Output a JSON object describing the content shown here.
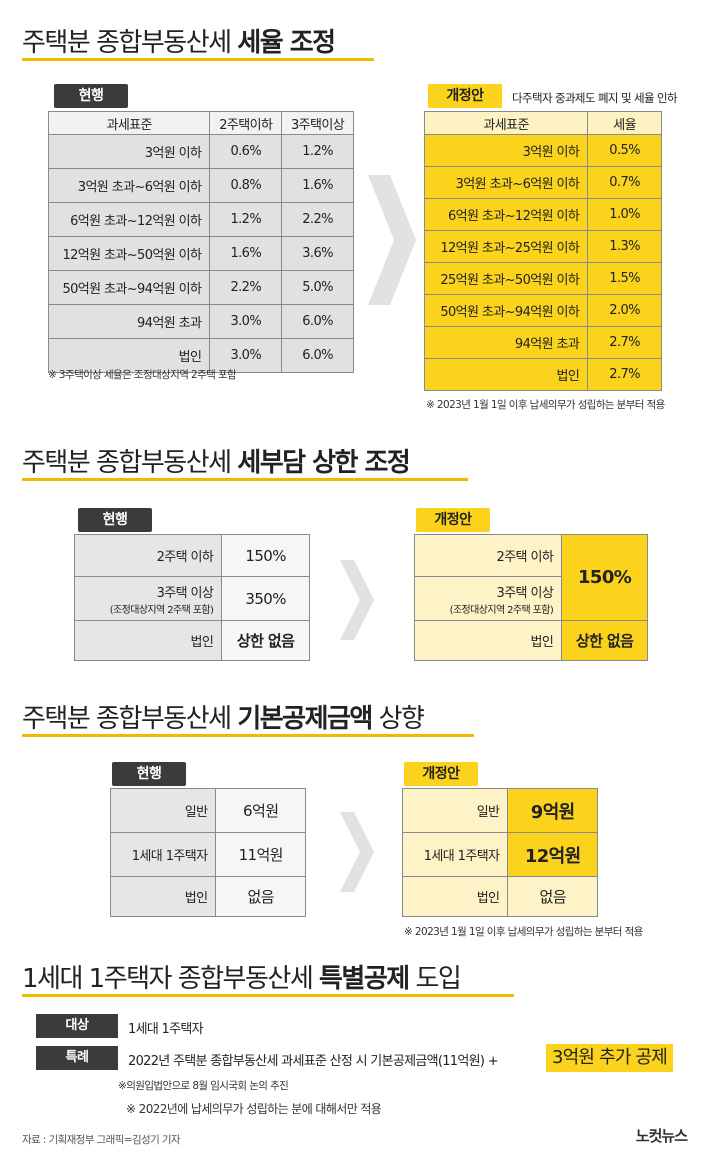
{
  "s1": {
    "title_normal": "주택분 종합부동산세 ",
    "title_bold": "세율 조정",
    "cur_tag": "현행",
    "new_tag": "개정안",
    "new_desc": "다주택자 중과제도 폐지 및 세율 인하",
    "cur_headers": [
      "과세표준",
      "2주택이하",
      "3주택이상"
    ],
    "cur_rows": [
      [
        "3억원 이하",
        "0.6%",
        "1.2%"
      ],
      [
        "3억원 초과~6억원 이하",
        "0.8%",
        "1.6%"
      ],
      [
        "6억원 초과~12억원 이하",
        "1.2%",
        "2.2%"
      ],
      [
        "12억원 초과~50억원 이하",
        "1.6%",
        "3.6%"
      ],
      [
        "50억원 초과~94억원 이하",
        "2.2%",
        "5.0%"
      ],
      [
        "94억원 초과",
        "3.0%",
        "6.0%"
      ],
      [
        "법인",
        "3.0%",
        "6.0%"
      ]
    ],
    "cur_note": "※ 3주택이상 세율은 조정대상지역 2주택 포함",
    "new_headers": [
      "과세표준",
      "세율"
    ],
    "new_rows": [
      [
        "3억원 이하",
        "0.5%"
      ],
      [
        "3억원 초과~6억원 이하",
        "0.7%"
      ],
      [
        "6억원 초과~12억원 이하",
        "1.0%"
      ],
      [
        "12억원 초과~25억원 이하",
        "1.3%"
      ],
      [
        "25억원 초과~50억원 이하",
        "1.5%"
      ],
      [
        "50억원 초과~94억원 이하",
        "2.0%"
      ],
      [
        "94억원 초과",
        "2.7%"
      ],
      [
        "법인",
        "2.7%"
      ]
    ],
    "new_note": "※ 2023년 1월 1일 이후 납세의무가 성립하는 분부터 적용"
  },
  "s2": {
    "title_normal": "주택분 종합부동산세 ",
    "title_bold": "세부담 상한 조정",
    "cur_tag": "현행",
    "new_tag": "개정안",
    "row1_label": "2주택 이하",
    "row2_label": "3주택 이상",
    "row2_sub": "(조정대상지역 2주택 포함)",
    "row3_label": "법인",
    "cur_v1": "150%",
    "cur_v2": "350%",
    "cur_v3": "상한 없음",
    "new_v12": "150%",
    "new_v3": "상한 없음"
  },
  "s3": {
    "title_normal": "주택분 종합부동산세 ",
    "title_bold": "기본공제금액",
    "title_tail": " 상향",
    "cur_tag": "현행",
    "new_tag": "개정안",
    "labels": [
      "일반",
      "1세대 1주택자",
      "법인"
    ],
    "cur_vals": [
      "6억원",
      "11억원",
      "없음"
    ],
    "new_vals": [
      "9억원",
      "12억원",
      "없음"
    ],
    "new_note": "※ 2023년 1월 1일 이후 납세의무가 성립하는 분부터 적용"
  },
  "s4": {
    "title_normal": "1세대 1주택자 종합부동산세 ",
    "title_bold": "특별공제",
    "title_tail": " 도입",
    "target_label": "대상",
    "target_text": "1세대 1주택자",
    "special_label": "특례",
    "special_text": "2022년 주택분 종합부동산세 과세표준 산정 시 기본공제금액(11억원) +",
    "special_highlight": "3억원 추가 공제",
    "note1": "※의원입법안으로 8월 임시국회 논의 추진",
    "note2": "※ 2022년에 납세의무가 성립하는 분에 대해서만 적용"
  },
  "footer": {
    "credit": "자료 : 기획재정부   그래픽=김성기 기자",
    "logo": "노컷뉴스"
  },
  "colors": {
    "accent": "#fbd21c",
    "dark": "#3b3b3b",
    "line": "#f5b800"
  }
}
